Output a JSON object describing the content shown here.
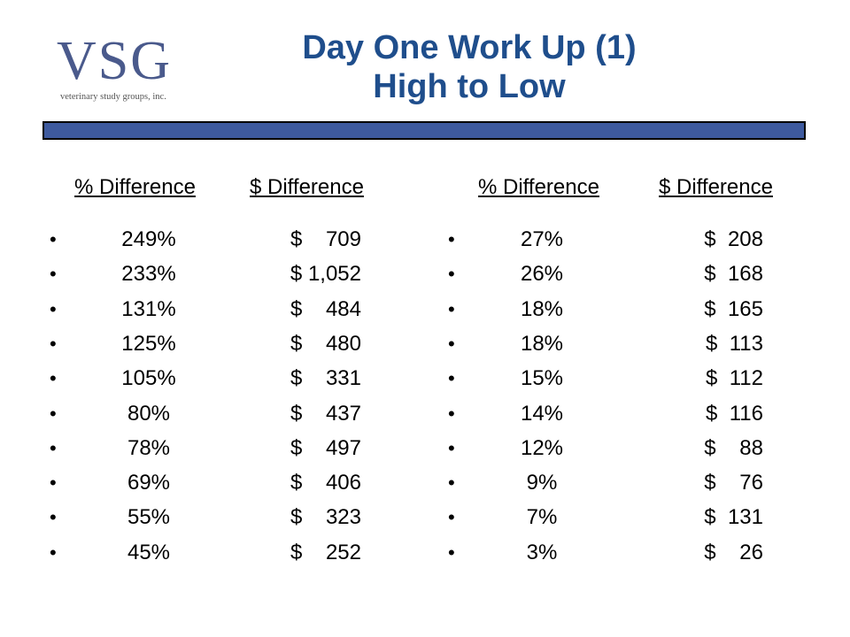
{
  "logo": {
    "mark": "VSG",
    "tagline": "veterinary study groups, inc."
  },
  "title": {
    "line1": "Day One Work Up (1)",
    "line2": "High to Low"
  },
  "headers": {
    "pct": "% Difference",
    "amt": "$ Difference"
  },
  "left_rows": [
    {
      "pct": "249%",
      "amt": "$    709"
    },
    {
      "pct": "233%",
      "amt": "$ 1,052"
    },
    {
      "pct": "131%",
      "amt": "$    484"
    },
    {
      "pct": "125%",
      "amt": "$    480"
    },
    {
      "pct": "105%",
      "amt": "$    331"
    },
    {
      "pct": "80%",
      "amt": "$    437"
    },
    {
      "pct": "78%",
      "amt": "$    497"
    },
    {
      "pct": "69%",
      "amt": "$    406"
    },
    {
      "pct": "55%",
      "amt": "$    323"
    },
    {
      "pct": "45%",
      "amt": "$    252"
    }
  ],
  "right_rows": [
    {
      "pct": "27%",
      "amt": "$  208"
    },
    {
      "pct": "26%",
      "amt": "$  168"
    },
    {
      "pct": "18%",
      "amt": "$  165"
    },
    {
      "pct": "18%",
      "amt": "$  113"
    },
    {
      "pct": "15%",
      "amt": "$  112"
    },
    {
      "pct": "14%",
      "amt": "$  116"
    },
    {
      "pct": "12%",
      "amt": "$    88"
    },
    {
      "pct": "9%",
      "amt": "$    76"
    },
    {
      "pct": "7%",
      "amt": "$  131"
    },
    {
      "pct": "3%",
      "amt": "$    26"
    }
  ],
  "colors": {
    "title": "#1f4e8c",
    "bar": "#3e5a9e",
    "logo": "#4a5a8c"
  }
}
